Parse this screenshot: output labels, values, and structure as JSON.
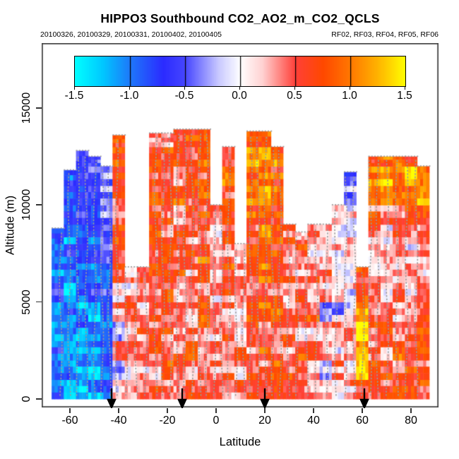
{
  "title": "HIPPO3 Southbound CO2_AO2_m_CO2_QCLS",
  "subtitle_left": "20100326, 20100329, 20100331, 20100402, 20100405",
  "subtitle_right": "RF02, RF03, RF04, RF05, RF06",
  "colorbar": {
    "min": -1.5,
    "max": 1.5,
    "tick_labels": [
      "-1.5",
      "-1.0",
      "-0.5",
      "0.0",
      "0.5",
      "1.0",
      "1.5"
    ],
    "stops": [
      [
        -1.5,
        "#00FFFF"
      ],
      [
        -1.25,
        "#00C8FF"
      ],
      [
        -1.0,
        "#1E78FA"
      ],
      [
        -0.7,
        "#2B2BFF"
      ],
      [
        -0.5,
        "#4646FF"
      ],
      [
        -0.2,
        "#C8C8FF"
      ],
      [
        0,
        "#FFFFFF"
      ],
      [
        0.2,
        "#FFD2D2"
      ],
      [
        0.5,
        "#FF4038"
      ],
      [
        0.75,
        "#FF4800"
      ],
      [
        1.0,
        "#FF7800"
      ],
      [
        1.25,
        "#FFB400"
      ],
      [
        1.5,
        "#FFFF00"
      ]
    ]
  },
  "axes": {
    "x_label": "Latitude",
    "y_label": "Altitude (m)",
    "x_ticks": [
      -60,
      -40,
      -20,
      0,
      20,
      40,
      60,
      80
    ],
    "y_ticks": [
      0,
      5000,
      10000,
      15000
    ]
  },
  "arrows_lat": [
    -43,
    -14,
    20,
    61
  ],
  "tracks_lat": [
    -64,
    -60.5,
    -57,
    -53.5,
    -50,
    -47,
    -44,
    -41,
    -37,
    -33,
    -29,
    -25,
    -22,
    -19,
    -16,
    -13,
    -10,
    -7,
    -4,
    -1,
    2,
    5,
    8,
    11,
    14,
    17,
    20,
    23,
    26,
    29.5,
    33,
    37,
    41,
    45,
    49,
    53,
    56.5,
    60,
    63,
    66,
    70,
    74,
    78,
    82
  ],
  "colors": {
    "axis": "#333333",
    "frame": "#444444",
    "track_dots": "#9a9a9a",
    "arrow": "#000000"
  },
  "chart_data": {
    "type": "heatmap",
    "title": "HIPPO3 Southbound CO2_AO2_m_CO2_QCLS",
    "xlabel": "Latitude",
    "ylabel": "Altitude (m)",
    "value_label": "CO2_AO2_m_CO2_QCLS",
    "value_range": [
      -1.5,
      1.5
    ],
    "xlim": [
      -72,
      91
    ],
    "ylim": [
      -500,
      18400
    ],
    "dates": [
      "20100326",
      "20100329",
      "20100331",
      "20100402",
      "20100405"
    ],
    "flights": [
      "RF02",
      "RF03",
      "RF04",
      "RF05",
      "RF06"
    ],
    "marker_latitudes": [
      -43,
      -14,
      20,
      61
    ],
    "lat_bin_width": 5,
    "alt_bin_height": 1000,
    "lat_centers": [
      -65,
      -60,
      -55,
      -50,
      -45,
      -40,
      -35,
      -30,
      -25,
      -20,
      -15,
      -10,
      -5,
      0,
      5,
      10,
      15,
      20,
      25,
      30,
      35,
      40,
      45,
      50,
      55,
      60,
      65,
      70,
      75,
      80,
      85
    ],
    "alt_centers": [
      500,
      1500,
      2500,
      3500,
      4500,
      5500,
      6500,
      7500,
      8500,
      9500,
      10500,
      11500,
      12500,
      13500
    ],
    "profile_top_m": [
      8800,
      11800,
      12800,
      12500,
      12000,
      13600,
      6800,
      6800,
      13700,
      13700,
      13900,
      13900,
      13900,
      10000,
      13000,
      8000,
      13800,
      13800,
      13000,
      9000,
      8600,
      9000,
      9000,
      10000,
      11700,
      6800,
      12500,
      12500,
      12500,
      12500,
      12000
    ],
    "values": [
      [
        -0.9,
        -1.1,
        -0.8,
        -1.2,
        -1.0,
        -0.7,
        -1.1,
        -0.9,
        -0.8,
        null,
        null,
        null,
        null,
        null
      ],
      [
        -1.2,
        -1.0,
        -1.3,
        -1.1,
        -0.9,
        -1.2,
        -1.0,
        -0.8,
        -1.0,
        -0.9,
        -0.7,
        -0.8,
        null,
        null
      ],
      [
        -1.3,
        -1.1,
        -1.2,
        -1.0,
        -1.1,
        -0.9,
        -1.0,
        -0.8,
        -0.9,
        -0.7,
        -0.8,
        -0.6,
        -0.7,
        null
      ],
      [
        -1.1,
        -1.2,
        -1.0,
        -0.9,
        -1.1,
        -0.8,
        -0.9,
        -0.7,
        -0.8,
        -0.6,
        -0.7,
        -0.5,
        -0.6,
        null
      ],
      [
        -0.9,
        -1.0,
        -0.8,
        -0.9,
        -0.7,
        -0.6,
        -0.8,
        -0.5,
        -0.6,
        -0.4,
        -0.5,
        -0.3,
        null,
        null
      ],
      [
        0.2,
        -0.3,
        0.3,
        -0.1,
        0.4,
        0.2,
        0.5,
        0.3,
        0.6,
        0.4,
        0.7,
        0.5,
        0.8,
        0.6
      ],
      [
        0.3,
        0.1,
        0.4,
        0.2,
        0.5,
        0.2,
        0.3,
        null,
        null,
        null,
        null,
        null,
        null,
        null
      ],
      [
        0.4,
        0.2,
        0.3,
        0.5,
        0.2,
        0.4,
        0.3,
        null,
        null,
        null,
        null,
        null,
        null,
        null
      ],
      [
        0.5,
        0.3,
        0.6,
        0.4,
        0.5,
        0.3,
        0.6,
        0.4,
        0.7,
        0.5,
        0.8,
        0.6,
        0.9,
        0.5
      ],
      [
        0.4,
        0.6,
        0.3,
        0.5,
        0.4,
        0.6,
        0.5,
        0.7,
        0.4,
        0.6,
        0.8,
        0.5,
        0.7,
        0.4
      ],
      [
        0.6,
        0.4,
        0.5,
        0.3,
        0.6,
        0.4,
        0.7,
        0.5,
        0.6,
        0.4,
        0.7,
        0.5,
        0.6,
        0.8
      ],
      [
        0.5,
        0.3,
        0.6,
        0.4,
        0.2,
        0.5,
        0.3,
        0.6,
        0.4,
        0.7,
        0.5,
        0.8,
        0.6,
        0.9
      ],
      [
        0.4,
        0.6,
        0.3,
        0.5,
        0.7,
        0.4,
        0.6,
        0.8,
        0.5,
        0.7,
        0.9,
        0.6,
        0.8,
        1.0
      ],
      [
        0.5,
        0.3,
        0.4,
        0.2,
        0.5,
        0.3,
        0.1,
        0.4,
        0.2,
        0.3,
        null,
        null,
        null,
        null
      ],
      [
        0.3,
        0.5,
        0.4,
        0.6,
        0.3,
        0.5,
        0.7,
        0.4,
        0.6,
        0.8,
        0.5,
        0.9,
        0.7,
        null
      ],
      [
        0.4,
        0.2,
        0.5,
        0.3,
        0.1,
        0.4,
        0.2,
        0.3,
        null,
        null,
        null,
        null,
        null,
        null
      ],
      [
        0.5,
        0.7,
        0.4,
        0.6,
        0.8,
        0.5,
        0.7,
        0.9,
        0.6,
        0.8,
        1.0,
        0.7,
        1.1,
        0.8
      ],
      [
        0.6,
        0.4,
        0.7,
        0.5,
        0.8,
        0.6,
        0.9,
        0.7,
        1.0,
        0.8,
        1.1,
        0.9,
        1.2,
        0.8
      ],
      [
        0.5,
        0.7,
        0.4,
        0.6,
        0.8,
        0.5,
        0.7,
        0.6,
        0.9,
        0.7,
        1.0,
        0.8,
        0.9,
        null
      ],
      [
        0.4,
        0.6,
        0.3,
        0.5,
        0.2,
        0.4,
        0.6,
        0.3,
        0.5,
        null,
        null,
        null,
        null,
        null
      ],
      [
        0.5,
        0.3,
        0.6,
        0.2,
        0.4,
        0.5,
        0.3,
        0.6,
        0.4,
        null,
        null,
        null,
        null,
        null
      ],
      [
        0.4,
        0.2,
        0.5,
        0.3,
        0.6,
        0.2,
        0.4,
        0.3,
        0.5,
        null,
        null,
        null,
        null,
        null
      ],
      [
        0.3,
        -0.2,
        0.4,
        0.1,
        -0.3,
        0.2,
        0.4,
        0.2,
        0.3,
        null,
        null,
        null,
        null,
        null
      ],
      [
        0.2,
        0.4,
        0.1,
        0.3,
        -0.2,
        0.1,
        0.2,
        0.0,
        0.1,
        0.2,
        null,
        null,
        null,
        null
      ],
      [
        0.3,
        0.1,
        0.2,
        0.4,
        0.1,
        0.0,
        0.2,
        0.1,
        0.0,
        0.1,
        -0.3,
        -0.4,
        null,
        null
      ],
      [
        0.8,
        1.3,
        1.1,
        1.4,
        1.2,
        0.9,
        0.7,
        null,
        null,
        null,
        null,
        null,
        null,
        null
      ],
      [
        0.6,
        0.8,
        0.5,
        0.7,
        0.4,
        0.6,
        0.3,
        0.2,
        0.4,
        0.6,
        0.9,
        1.1,
        0.8,
        null
      ],
      [
        0.5,
        0.7,
        0.4,
        0.6,
        0.3,
        0.2,
        0.1,
        0.3,
        0.2,
        0.5,
        1.0,
        1.2,
        0.9,
        null
      ],
      [
        0.6,
        0.4,
        0.7,
        0.5,
        0.2,
        0.3,
        0.1,
        0.2,
        0.4,
        0.3,
        0.9,
        1.1,
        1.0,
        null
      ],
      [
        0.5,
        0.7,
        0.4,
        0.6,
        0.3,
        0.1,
        0.2,
        0.1,
        0.3,
        0.5,
        0.8,
        1.2,
        0.9,
        null
      ],
      [
        0.7,
        0.5,
        0.8,
        0.6,
        0.4,
        0.5,
        0.3,
        0.4,
        0.6,
        0.8,
        1.0,
        0.9,
        null,
        null
      ]
    ]
  }
}
